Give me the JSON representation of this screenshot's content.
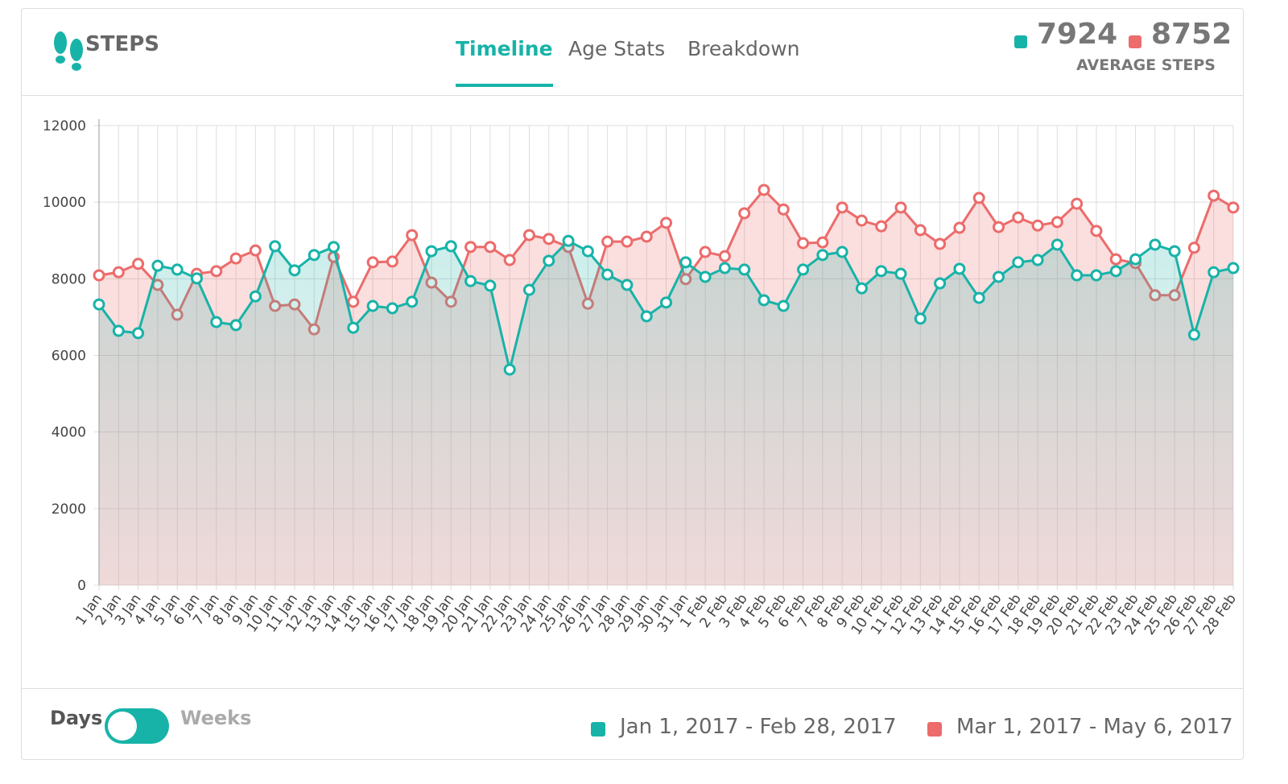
{
  "header": {
    "title": "STEPS",
    "tabs": [
      "Timeline",
      "Age Stats",
      "Breakdown"
    ],
    "active_tab": 0
  },
  "summary": {
    "values": [
      7924,
      8752
    ],
    "label": "AVERAGE STEPS"
  },
  "chart_data": {
    "type": "line",
    "categories": [
      "1 Jan",
      "2 Jan",
      "3 Jan",
      "4 Jan",
      "5 Jan",
      "6 Jan",
      "7 Jan",
      "8 Jan",
      "9 Jan",
      "10 Jan",
      "11 Jan",
      "12 Jan",
      "13 Jan",
      "14 Jan",
      "15 Jan",
      "16 Jan",
      "17 Jan",
      "18 Jan",
      "19 Jan",
      "20 Jan",
      "21 Jan",
      "22 Jan",
      "23 Jan",
      "24 Jan",
      "25 Jan",
      "26 Jan",
      "27 Jan",
      "28 Jan",
      "29 Jan",
      "30 Jan",
      "31 Jan",
      "1 Feb",
      "2 Feb",
      "3 Feb",
      "4 Feb",
      "5 Feb",
      "6 Feb",
      "7 Feb",
      "8 Feb",
      "9 Feb",
      "10 Feb",
      "11 Feb",
      "12 Feb",
      "13 Feb",
      "14 Feb",
      "15 Feb",
      "16 Feb",
      "17 Feb",
      "18 Feb",
      "19 Feb",
      "20 Feb",
      "21 Feb",
      "22 Feb",
      "23 Feb",
      "24 Feb",
      "25 Feb",
      "26 Feb",
      "27 Feb",
      "28 Feb"
    ],
    "series": [
      {
        "name": "Jan 1, 2017 - Feb 28, 2017",
        "color": "#17b3a8",
        "values": [
          7330,
          6640,
          6580,
          8340,
          8240,
          8010,
          6870,
          6790,
          7540,
          8850,
          8220,
          8620,
          8830,
          6720,
          7290,
          7230,
          7400,
          8720,
          8850,
          7940,
          7820,
          5630,
          7710,
          8470,
          8990,
          8720,
          8110,
          7840,
          7020,
          7380,
          8430,
          8050,
          8280,
          8240,
          7440,
          7290,
          8240,
          8620,
          8700,
          7750,
          8200,
          8130,
          6960,
          7880,
          8260,
          7500,
          8050,
          8430,
          8490,
          8890,
          8090,
          8090,
          8200,
          8510,
          8890,
          8720,
          6540,
          8170,
          8280
        ]
      },
      {
        "name": "Mar 1, 2017 - May 6, 2017",
        "color": "#ec6b6b",
        "values": [
          8090,
          8170,
          8390,
          7840,
          7060,
          8130,
          8200,
          8530,
          8740,
          7290,
          7330,
          6680,
          8570,
          7400,
          8430,
          8450,
          9140,
          7900,
          7400,
          8830,
          8830,
          8490,
          9140,
          9040,
          8830,
          7350,
          8970,
          8970,
          9100,
          9460,
          7990,
          8700,
          8590,
          9710,
          10320,
          9810,
          8930,
          8950,
          9860,
          9520,
          9370,
          9860,
          9270,
          8910,
          9330,
          10110,
          9350,
          9600,
          9390,
          9480,
          9960,
          9250,
          8510,
          8410,
          7570,
          7570,
          8810,
          10170,
          9860
        ]
      }
    ],
    "ylim": [
      0,
      12000
    ],
    "yticks": [
      0,
      2000,
      4000,
      6000,
      8000,
      10000,
      12000
    ],
    "grid": true
  },
  "footer": {
    "toggle_left": "Days",
    "toggle_right": "Weeks"
  }
}
